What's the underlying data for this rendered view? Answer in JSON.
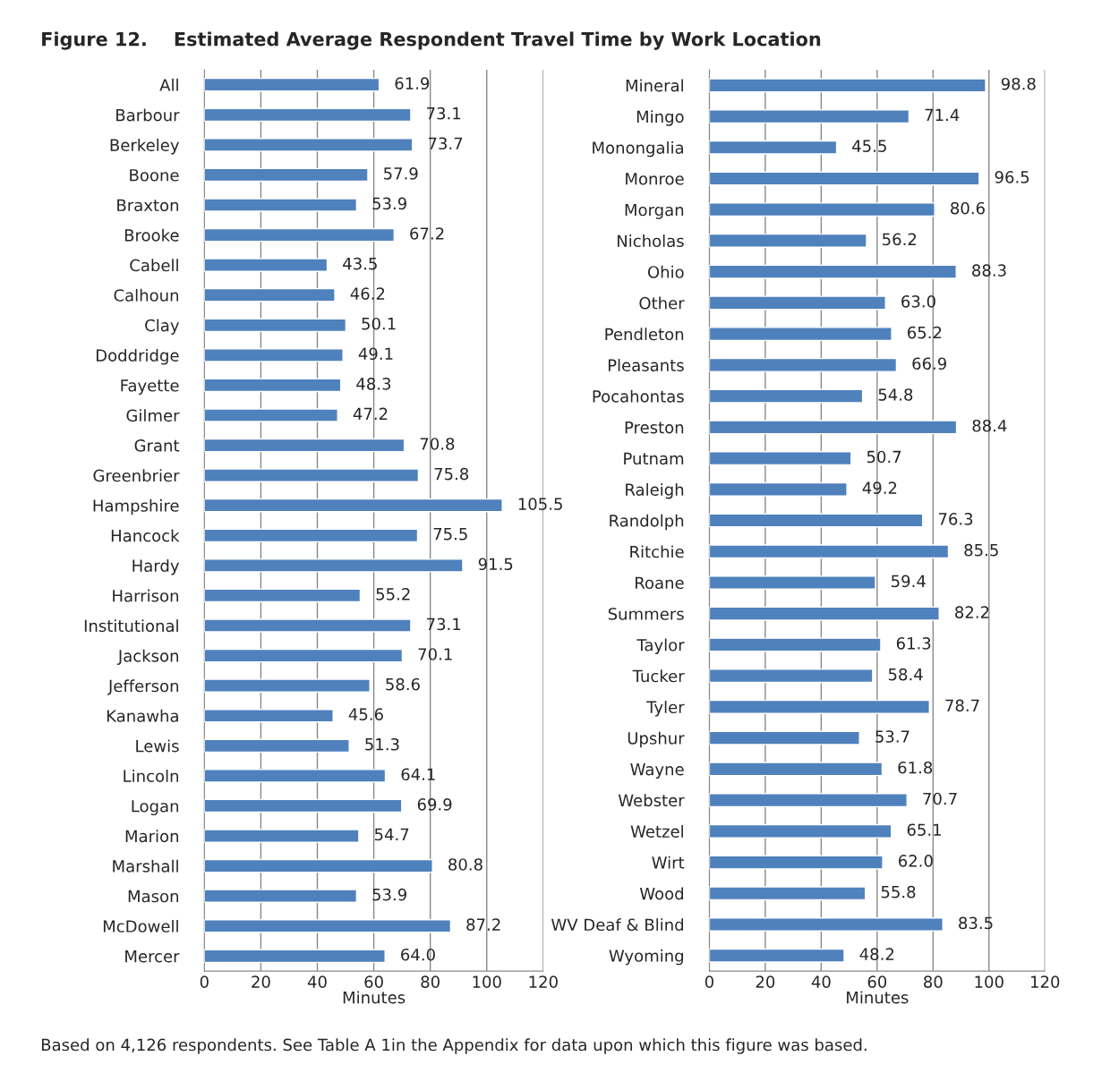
{
  "chart_data": [
    {
      "type": "bar",
      "orientation": "horizontal",
      "title": "Figure 12.    Estimated Average Respondent Travel Time by Work Location",
      "categories": [
        "All",
        "Barbour",
        "Berkeley",
        "Boone",
        "Braxton",
        "Brooke",
        "Cabell",
        "Calhoun",
        "Clay",
        "Doddridge",
        "Fayette",
        "Gilmer",
        "Grant",
        "Greenbrier",
        "Hampshire",
        "Hancock",
        "Hardy",
        "Harrison",
        "Institutional",
        "Jackson",
        "Jefferson",
        "Kanawha",
        "Lewis",
        "Lincoln",
        "Logan",
        "Marion",
        "Marshall",
        "Mason",
        "McDowell",
        "Mercer"
      ],
      "values": [
        61.9,
        73.1,
        73.7,
        57.9,
        53.9,
        67.2,
        43.5,
        46.2,
        50.1,
        49.1,
        48.3,
        47.2,
        70.8,
        75.8,
        105.5,
        75.5,
        91.5,
        55.2,
        73.1,
        70.1,
        58.6,
        45.6,
        51.3,
        64.1,
        69.9,
        54.7,
        80.8,
        53.9,
        87.2,
        64.0
      ],
      "value_labels": [
        "61.9",
        "73.1",
        "73.7",
        "57.9",
        "53.9",
        "67.2",
        "43.5",
        "46.2",
        "50.1",
        "49.1",
        "48.3",
        "47.2",
        "70.8",
        "75.8",
        "105.5",
        "75.5",
        "91.5",
        "55.2",
        "73.1",
        "70.1",
        "58.6",
        "45.6",
        "51.3",
        "64.1",
        "69.9",
        "54.7",
        "80.8",
        "53.9",
        "87.2",
        "64.0"
      ],
      "color": "#4f81bd",
      "xlim": [
        0,
        120
      ],
      "xticks": [
        0,
        20,
        40,
        60,
        80,
        100,
        120
      ],
      "xlabel": "Minutes",
      "grid": "x",
      "legend": false
    },
    {
      "type": "bar",
      "orientation": "horizontal",
      "categories": [
        "Mineral",
        "Mingo",
        "Monongalia",
        "Monroe",
        "Morgan",
        "Nicholas",
        "Ohio",
        "Other",
        "Pendleton",
        "Pleasants",
        "Pocahontas",
        "Preston",
        "Putnam",
        "Raleigh",
        "Randolph",
        "Ritchie",
        "Roane",
        "Summers",
        "Taylor",
        "Tucker",
        "Tyler",
        "Upshur",
        "Wayne",
        "Webster",
        "Wetzel",
        "Wirt",
        "Wood",
        "WV Deaf & Blind",
        "Wyoming"
      ],
      "values": [
        98.8,
        71.4,
        45.5,
        96.5,
        80.6,
        56.2,
        88.3,
        63.0,
        65.2,
        66.9,
        54.8,
        88.4,
        50.7,
        49.2,
        76.3,
        85.5,
        59.4,
        82.2,
        61.3,
        58.4,
        78.7,
        53.7,
        61.8,
        70.7,
        65.1,
        62.0,
        55.8,
        83.5,
        48.2
      ],
      "value_labels": [
        "98.8",
        "71.4",
        "45.5",
        "96.5",
        "80.6",
        "56.2",
        "88.3",
        "63.0",
        "65.2",
        "66.9",
        "54.8",
        "88.4",
        "50.7",
        "49.2",
        "76.3",
        "85.5",
        "59.4",
        "82.2",
        "61.3",
        "58.4",
        "78.7",
        "53.7",
        "61.8",
        "70.7",
        "65.1",
        "62.0",
        "55.8",
        "83.5",
        "48.2"
      ],
      "color": "#4f81bd",
      "xlim": [
        0,
        120
      ],
      "xticks": [
        0,
        20,
        40,
        60,
        80,
        100,
        120
      ],
      "xlabel": "Minutes",
      "grid": "x",
      "legend": false,
      "annotations": [
        "Based on 4,126 respondents. See Table A 1in the Appendix for data upon which this figure was based."
      ]
    }
  ]
}
